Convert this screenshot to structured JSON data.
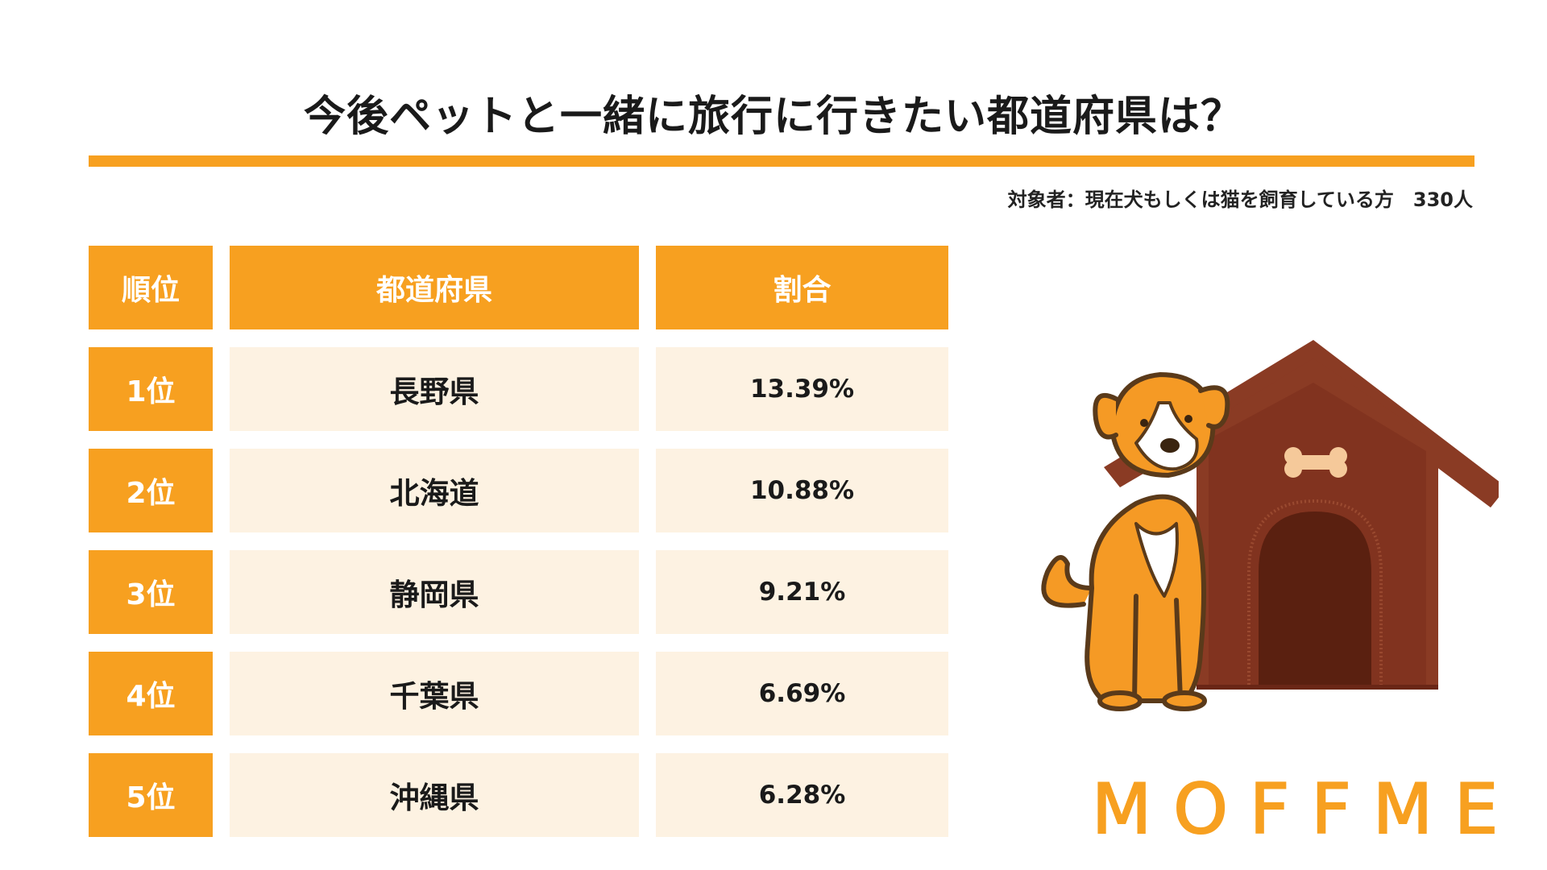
{
  "chart_data": {
    "type": "table",
    "title": "今後ペットと一緒に旅行に行きたい都道府県は？",
    "note": "対象者：現在犬もしくは猫を飼育している方　330人",
    "columns": [
      "順位",
      "都道府県",
      "割合"
    ],
    "rows": [
      {
        "rank": "1位",
        "prefecture": "長野県",
        "percent": "13.39%"
      },
      {
        "rank": "2位",
        "prefecture": "北海道",
        "percent": "10.88%"
      },
      {
        "rank": "3位",
        "prefecture": "静岡県",
        "percent": "9.21%"
      },
      {
        "rank": "4位",
        "prefecture": "千葉県",
        "percent": "6.69%"
      },
      {
        "rank": "5位",
        "prefecture": "沖縄県",
        "percent": "6.28%"
      }
    ]
  },
  "logo": "MOFFME",
  "icons": {
    "dog": "dog-icon",
    "doghouse": "doghouse-icon",
    "bone": "bone-icon"
  },
  "colors": {
    "accent": "#f7a020",
    "row_bg": "#fdf2e2",
    "house_roof": "#8a3b24",
    "house_wall": "#7a2e1c",
    "house_door": "#5a2010"
  }
}
